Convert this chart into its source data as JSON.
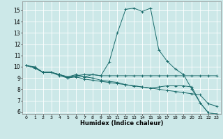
{
  "xlabel": "Humidex (Indice chaleur)",
  "background_color": "#cce8e8",
  "grid_color": "#ffffff",
  "line_color": "#1a6b6b",
  "xlim": [
    -0.5,
    23.5
  ],
  "ylim": [
    5.8,
    15.8
  ],
  "xticks": [
    0,
    1,
    2,
    3,
    4,
    5,
    6,
    7,
    8,
    9,
    10,
    11,
    12,
    13,
    14,
    15,
    16,
    17,
    18,
    19,
    20,
    21,
    22,
    23
  ],
  "yticks": [
    6,
    7,
    8,
    9,
    10,
    11,
    12,
    13,
    14,
    15
  ],
  "series": [
    {
      "x": [
        0,
        1,
        2,
        3,
        4,
        5,
        6,
        7,
        8,
        9,
        10,
        11,
        12,
        13,
        14,
        15,
        16,
        17,
        18,
        19,
        20,
        21,
        22,
        23
      ],
      "y": [
        10.1,
        10.0,
        9.5,
        9.5,
        9.2,
        9.0,
        9.2,
        9.1,
        9.3,
        9.2,
        10.4,
        13.0,
        15.1,
        15.2,
        14.9,
        15.2,
        11.5,
        10.5,
        9.8,
        9.3,
        8.0,
        6.8,
        5.9,
        5.8
      ]
    },
    {
      "x": [
        0,
        1,
        2,
        3,
        4,
        5,
        6,
        7,
        8,
        9,
        10,
        11,
        12,
        13,
        14,
        15,
        16,
        17,
        18,
        19,
        20,
        21,
        22,
        23
      ],
      "y": [
        10.1,
        9.9,
        9.5,
        9.5,
        9.3,
        9.1,
        9.2,
        9.3,
        9.3,
        9.2,
        9.2,
        9.2,
        9.2,
        9.2,
        9.2,
        9.2,
        9.2,
        9.2,
        9.2,
        9.2,
        9.2,
        9.2,
        9.2,
        9.2
      ]
    },
    {
      "x": [
        0,
        1,
        2,
        3,
        4,
        5,
        6,
        7,
        8,
        9,
        10,
        11,
        12,
        13,
        14,
        15,
        16,
        17,
        18,
        19,
        20,
        21,
        22,
        23
      ],
      "y": [
        10.1,
        9.9,
        9.5,
        9.5,
        9.3,
        9.0,
        9.1,
        8.9,
        8.8,
        8.7,
        8.6,
        8.5,
        8.4,
        8.3,
        8.2,
        8.1,
        8.0,
        7.9,
        7.8,
        7.7,
        7.6,
        7.5,
        6.7,
        6.5
      ]
    },
    {
      "x": [
        0,
        1,
        2,
        3,
        4,
        5,
        6,
        7,
        8,
        9,
        10,
        11,
        12,
        13,
        14,
        15,
        16,
        17,
        18,
        19,
        20,
        21,
        22,
        23
      ],
      "y": [
        10.1,
        9.9,
        9.5,
        9.5,
        9.3,
        9.1,
        9.3,
        9.1,
        9.0,
        8.8,
        8.7,
        8.6,
        8.4,
        8.3,
        8.2,
        8.1,
        8.2,
        8.3,
        8.3,
        8.3,
        8.2,
        6.8,
        5.9,
        5.8
      ]
    }
  ]
}
